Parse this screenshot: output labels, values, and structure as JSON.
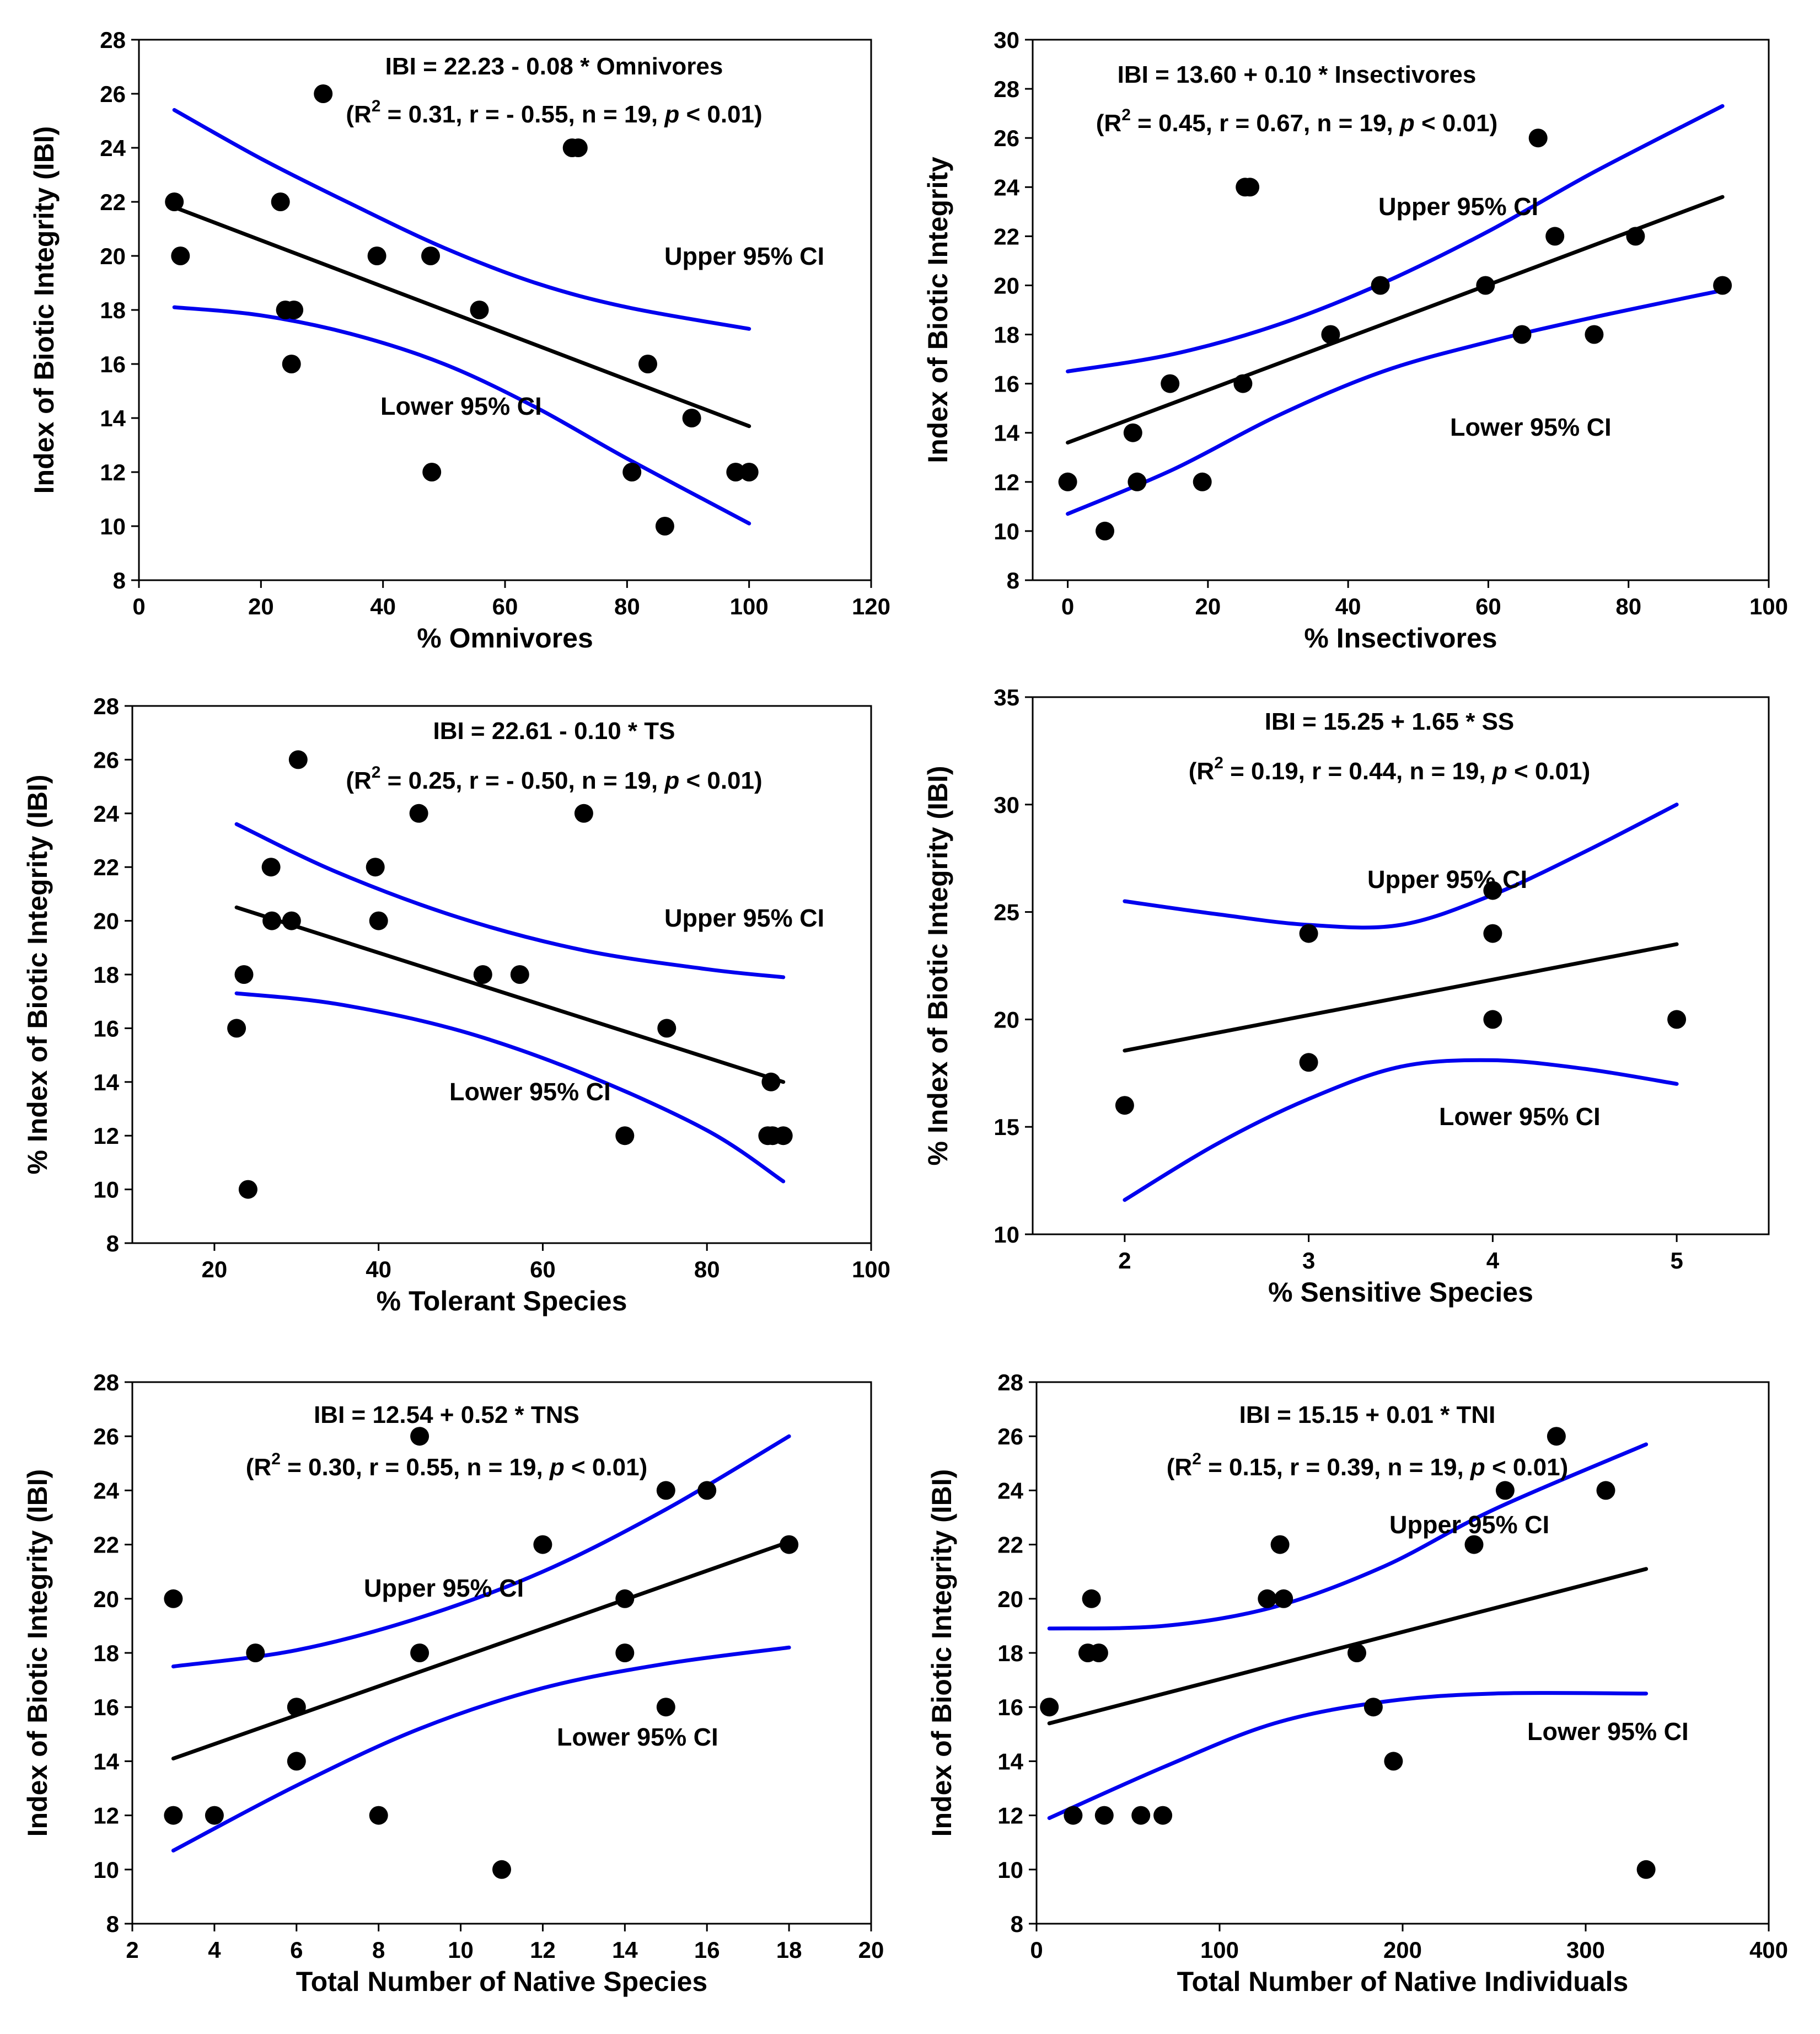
{
  "chart_data": [
    {
      "type": "scatter",
      "xlabel": "% Omnivores",
      "ylabel": "Index of Biotic Integrity (IBI)",
      "xlim": [
        0,
        120
      ],
      "ylim": [
        8,
        28
      ],
      "xticks": [
        0,
        20,
        40,
        60,
        80,
        100,
        120
      ],
      "yticks": [
        8,
        10,
        12,
        14,
        16,
        18,
        20,
        22,
        24,
        26,
        28
      ],
      "equation": "IBI = 22.23 - 0.08 * Omnivores",
      "stats": {
        "prefix": "(R",
        "sup": "2",
        "mid": " = 0.31, r = - 0.55, n = 19, ",
        "p": "p",
        "suffix": " < 0.01)"
      },
      "upper_label": "Upper 95% CI",
      "lower_label": "Lower 95% CI",
      "points": [
        [
          5.8,
          22
        ],
        [
          6.8,
          20
        ],
        [
          23.2,
          22
        ],
        [
          24,
          18
        ],
        [
          25.4,
          18
        ],
        [
          25,
          16
        ],
        [
          30.2,
          26
        ],
        [
          39,
          20
        ],
        [
          47.8,
          20
        ],
        [
          48,
          12
        ],
        [
          55.8,
          18
        ],
        [
          71,
          24
        ],
        [
          72,
          24
        ],
        [
          80.8,
          12
        ],
        [
          83.4,
          16
        ],
        [
          86.2,
          10
        ],
        [
          90.6,
          14
        ],
        [
          97.8,
          12
        ],
        [
          100,
          12
        ]
      ],
      "fit_line": [
        [
          5.8,
          21.8
        ],
        [
          100,
          13.7
        ]
      ],
      "upper_ci": [
        [
          5.8,
          25.4
        ],
        [
          20,
          23.6
        ],
        [
          35,
          21.9
        ],
        [
          50,
          20.3
        ],
        [
          65,
          19.0
        ],
        [
          80,
          18.1
        ],
        [
          100,
          17.3
        ]
      ],
      "lower_ci": [
        [
          5.8,
          18.1
        ],
        [
          20,
          17.8
        ],
        [
          35,
          17.1
        ],
        [
          50,
          16.0
        ],
        [
          65,
          14.4
        ],
        [
          80,
          12.5
        ],
        [
          100,
          10.1
        ]
      ]
    },
    {
      "type": "scatter",
      "xlabel": "% Insectivores",
      "ylabel": "Index of Biotic Integrity",
      "xlim": [
        -5,
        100
      ],
      "ylim": [
        8,
        30
      ],
      "xticks": [
        0,
        20,
        40,
        60,
        80,
        100
      ],
      "yticks": [
        8,
        10,
        12,
        14,
        16,
        18,
        20,
        22,
        24,
        26,
        28,
        30
      ],
      "equation": "IBI = 13.60 + 0.10 * Insectivores",
      "stats": {
        "prefix": "(R",
        "sup": "2",
        "mid": " = 0.45, r = 0.67, n = 19, ",
        "p": "p",
        "suffix": " < 0.01)"
      },
      "upper_label": "Upper 95% CI",
      "lower_label": "Lower 95% CI",
      "points": [
        [
          0,
          12
        ],
        [
          5.3,
          10
        ],
        [
          9.3,
          14
        ],
        [
          9.9,
          12
        ],
        [
          14.6,
          16
        ],
        [
          19.2,
          12
        ],
        [
          25,
          16
        ],
        [
          25.3,
          24
        ],
        [
          26,
          24
        ],
        [
          37.5,
          18
        ],
        [
          44.6,
          20
        ],
        [
          59.6,
          20
        ],
        [
          64.8,
          18
        ],
        [
          67.1,
          26
        ],
        [
          69.5,
          22
        ],
        [
          75.1,
          18
        ],
        [
          81,
          22
        ],
        [
          93.4,
          20
        ]
      ],
      "fit_line": [
        [
          0,
          13.6
        ],
        [
          93.4,
          23.6
        ]
      ],
      "upper_ci": [
        [
          0,
          16.5
        ],
        [
          15,
          17.2
        ],
        [
          30,
          18.4
        ],
        [
          45,
          20.1
        ],
        [
          60,
          22.2
        ],
        [
          75,
          24.6
        ],
        [
          93.4,
          27.3
        ]
      ],
      "lower_ci": [
        [
          0,
          10.7
        ],
        [
          15,
          12.5
        ],
        [
          30,
          14.7
        ],
        [
          45,
          16.5
        ],
        [
          60,
          17.7
        ],
        [
          75,
          18.7
        ],
        [
          93.4,
          19.8
        ]
      ]
    },
    {
      "type": "scatter",
      "xlabel": "% Tolerant Species",
      "ylabel": "% Index of Biotic Integrity (IBI)",
      "xlim": [
        10,
        100
      ],
      "ylim": [
        8,
        28
      ],
      "xticks": [
        20,
        40,
        60,
        80,
        100
      ],
      "yticks": [
        8,
        10,
        12,
        14,
        16,
        18,
        20,
        22,
        24,
        26,
        28
      ],
      "equation": "IBI = 22.61 - 0.10 * TS",
      "stats": {
        "prefix": "(R",
        "sup": "2",
        "mid": " = 0.25, r = - 0.50, n = 19, ",
        "p": "p",
        "suffix": " < 0.01)"
      },
      "upper_label": "Upper 95% CI",
      "lower_label": "Lower 95% CI",
      "points": [
        [
          22.7,
          16
        ],
        [
          23.6,
          18
        ],
        [
          24.1,
          10
        ],
        [
          26.9,
          22
        ],
        [
          27,
          20
        ],
        [
          29.4,
          20
        ],
        [
          30.2,
          26
        ],
        [
          39.6,
          22
        ],
        [
          40,
          20
        ],
        [
          44.9,
          24
        ],
        [
          52.7,
          18
        ],
        [
          57.2,
          18
        ],
        [
          65,
          24
        ],
        [
          70,
          12
        ],
        [
          75.1,
          16
        ],
        [
          87.4,
          12
        ],
        [
          87.8,
          14
        ],
        [
          88,
          12
        ],
        [
          89.3,
          12
        ]
      ],
      "fit_line": [
        [
          22.7,
          20.5
        ],
        [
          89.3,
          14.0
        ]
      ],
      "upper_ci": [
        [
          22.7,
          23.6
        ],
        [
          35,
          21.8
        ],
        [
          50,
          20.1
        ],
        [
          65,
          18.9
        ],
        [
          80,
          18.2
        ],
        [
          89.3,
          17.9
        ]
      ],
      "lower_ci": [
        [
          22.7,
          17.3
        ],
        [
          35,
          16.9
        ],
        [
          50,
          15.9
        ],
        [
          65,
          14.3
        ],
        [
          80,
          12.2
        ],
        [
          89.3,
          10.3
        ]
      ]
    },
    {
      "type": "scatter",
      "xlabel": "% Sensitive Species",
      "ylabel": "% Index of Biotic Integrity (IBI)",
      "xlim": [
        1.5,
        5.5
      ],
      "ylim": [
        10,
        35
      ],
      "xticks": [
        2,
        3,
        4,
        5
      ],
      "yticks": [
        10,
        15,
        20,
        25,
        30,
        35
      ],
      "equation": "IBI = 15.25 + 1.65 * SS",
      "stats": {
        "prefix": "(R",
        "sup": "2",
        "mid": " = 0.19, r = 0.44, n = 19, ",
        "p": "p",
        "suffix": " < 0.01)"
      },
      "upper_label": "Upper 95% CI",
      "lower_label": "Lower 95% CI",
      "points": [
        [
          2,
          16
        ],
        [
          3,
          24
        ],
        [
          3,
          18
        ],
        [
          4,
          26
        ],
        [
          4,
          24
        ],
        [
          4,
          20
        ],
        [
          5,
          20
        ]
      ],
      "fit_line": [
        [
          2,
          18.55
        ],
        [
          5,
          23.5
        ]
      ],
      "upper_ci": [
        [
          2,
          25.5
        ],
        [
          2.5,
          24.9
        ],
        [
          3,
          24.4
        ],
        [
          3.5,
          24.4
        ],
        [
          4,
          25.8
        ],
        [
          4.5,
          27.8
        ],
        [
          5,
          30
        ]
      ],
      "lower_ci": [
        [
          2,
          11.6
        ],
        [
          2.5,
          14.2
        ],
        [
          3,
          16.3
        ],
        [
          3.5,
          17.8
        ],
        [
          4,
          18.1
        ],
        [
          4.5,
          17.7
        ],
        [
          5,
          17
        ]
      ]
    },
    {
      "type": "scatter",
      "xlabel": "Total Number of Native Species",
      "ylabel": "Index of Biotic Integrity (IBI)",
      "xlim": [
        2,
        20
      ],
      "ylim": [
        8,
        28
      ],
      "xticks": [
        2,
        4,
        6,
        8,
        10,
        12,
        14,
        16,
        18,
        20
      ],
      "yticks": [
        8,
        10,
        12,
        14,
        16,
        18,
        20,
        22,
        24,
        26,
        28
      ],
      "equation": "IBI = 12.54 + 0.52 * TNS",
      "stats": {
        "prefix": "(R",
        "sup": "2",
        "mid": " = 0.30, r = 0.55, n = 19, ",
        "p": "p",
        "suffix": " < 0.01)"
      },
      "upper_label": "Upper 95% CI",
      "lower_label": "Lower 95% CI",
      "points": [
        [
          3,
          20
        ],
        [
          3,
          12
        ],
        [
          4,
          12
        ],
        [
          5,
          18
        ],
        [
          6,
          16
        ],
        [
          6,
          14
        ],
        [
          8,
          12
        ],
        [
          9,
          26
        ],
        [
          9,
          18
        ],
        [
          11,
          10
        ],
        [
          12,
          22
        ],
        [
          14,
          20
        ],
        [
          14,
          18
        ],
        [
          15,
          24
        ],
        [
          15,
          16
        ],
        [
          16,
          24
        ],
        [
          18,
          22
        ]
      ],
      "fit_line": [
        [
          3,
          14.1
        ],
        [
          18,
          22.1
        ]
      ],
      "upper_ci": [
        [
          3,
          17.5
        ],
        [
          6,
          18.1
        ],
        [
          9,
          19.3
        ],
        [
          12,
          21.0
        ],
        [
          15,
          23.3
        ],
        [
          18,
          26
        ]
      ],
      "lower_ci": [
        [
          3,
          10.7
        ],
        [
          6,
          13.1
        ],
        [
          9,
          15.2
        ],
        [
          12,
          16.7
        ],
        [
          15,
          17.6
        ],
        [
          18,
          18.2
        ]
      ]
    },
    {
      "type": "scatter",
      "xlabel": "Total Number of Native Individuals",
      "ylabel": "Index of Biotic Integrity (IBI)",
      "xlim": [
        0,
        400
      ],
      "ylim": [
        8,
        28
      ],
      "xticks": [
        0,
        100,
        200,
        300,
        400
      ],
      "yticks": [
        8,
        10,
        12,
        14,
        16,
        18,
        20,
        22,
        24,
        26,
        28
      ],
      "equation": "IBI = 15.15 + 0.01 * TNI",
      "stats": {
        "prefix": "(R",
        "sup": "2",
        "mid": " = 0.15, r = 0.39, n = 19, ",
        "p": "p",
        "suffix": " < 0.01)"
      },
      "upper_label": "Upper 95% CI",
      "lower_label": "Lower 95% CI",
      "points": [
        [
          7,
          16
        ],
        [
          20,
          12
        ],
        [
          28,
          18
        ],
        [
          30,
          20
        ],
        [
          34,
          18
        ],
        [
          37,
          12
        ],
        [
          57,
          12
        ],
        [
          69,
          12
        ],
        [
          126,
          20
        ],
        [
          133,
          22
        ],
        [
          135,
          20
        ],
        [
          175,
          18
        ],
        [
          184,
          16
        ],
        [
          195,
          14
        ],
        [
          239,
          22
        ],
        [
          256,
          24
        ],
        [
          284,
          26
        ],
        [
          311,
          24
        ],
        [
          333,
          10
        ]
      ],
      "fit_line": [
        [
          7,
          15.4
        ],
        [
          333,
          21.1
        ]
      ],
      "upper_ci": [
        [
          7,
          18.9
        ],
        [
          70,
          19.0
        ],
        [
          130,
          19.7
        ],
        [
          190,
          21.2
        ],
        [
          250,
          23.3
        ],
        [
          333,
          25.7
        ]
      ],
      "lower_ci": [
        [
          7,
          11.9
        ],
        [
          70,
          13.8
        ],
        [
          130,
          15.4
        ],
        [
          190,
          16.2
        ],
        [
          250,
          16.5
        ],
        [
          333,
          16.5
        ]
      ]
    }
  ]
}
